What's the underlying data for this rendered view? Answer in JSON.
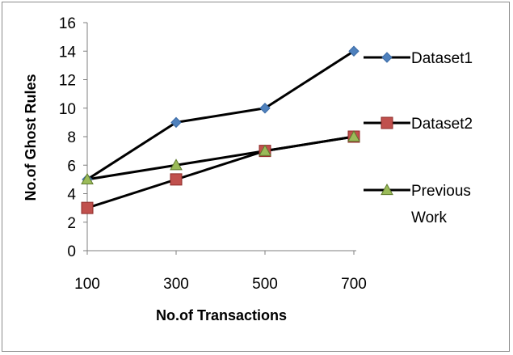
{
  "chart_data": {
    "type": "line",
    "title": "",
    "xlabel": "No.of Transactions",
    "ylabel": "No.of Ghost Rules",
    "categories": [
      "100",
      "300",
      "500",
      "700"
    ],
    "ylim": [
      0,
      16
    ],
    "yticks": [
      "0",
      "2",
      "4",
      "6",
      "8",
      "10",
      "12",
      "14",
      "16"
    ],
    "grid": false,
    "legend_position": "right",
    "series": [
      {
        "name": "Dataset1",
        "values": [
          5,
          9,
          10,
          14
        ],
        "marker": "diamond",
        "color": "#4f81bd",
        "edge": "#3a6aa5"
      },
      {
        "name": "Dataset2",
        "values": [
          3,
          5,
          7,
          8
        ],
        "marker": "square",
        "color": "#c0504d",
        "edge": "#8e2b28"
      },
      {
        "name": "Previous Work",
        "name_lines": [
          "Previous",
          "Work"
        ],
        "values": [
          5,
          6,
          7,
          8
        ],
        "marker": "triangle",
        "color": "#9bbb59",
        "edge": "#5f7a2e"
      }
    ],
    "line_color": "#000000"
  }
}
